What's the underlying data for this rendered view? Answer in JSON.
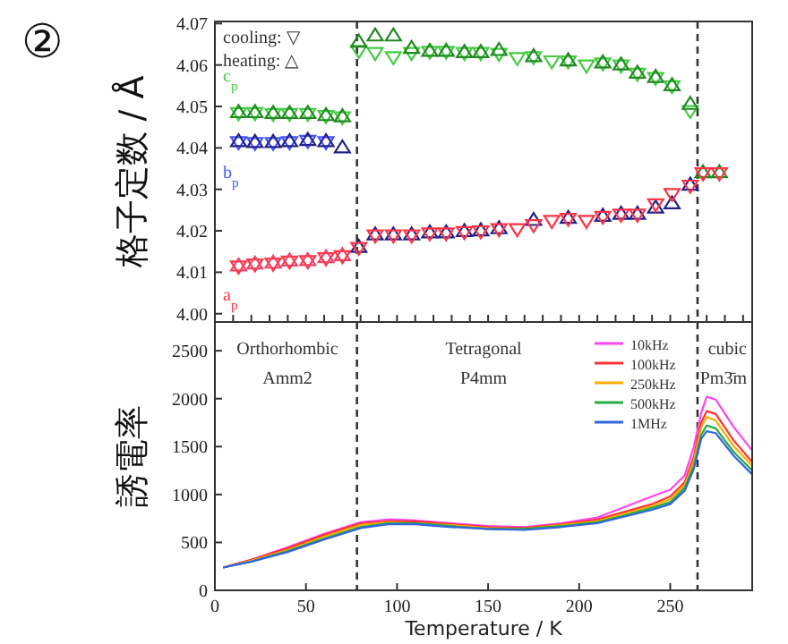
{
  "chart_data": [
    {
      "type": "scatter",
      "title": "②",
      "ylabel": "格子定数 / Å",
      "xlim": [
        0,
        295
      ],
      "ylim": [
        3.998,
        4.0705
      ],
      "xticks": [
        {
          "value": 0,
          "label": null
        },
        {
          "value": 10,
          "label": null
        },
        {
          "value": 20,
          "label": null
        },
        {
          "value": 30,
          "label": null
        },
        {
          "value": 40,
          "label": null
        },
        {
          "value": 50,
          "label": null
        },
        {
          "value": 60,
          "label": null
        },
        {
          "value": 70,
          "label": null
        },
        {
          "value": 80,
          "label": null
        },
        {
          "value": 90,
          "label": null
        },
        {
          "value": 100,
          "label": null
        },
        {
          "value": 110,
          "label": null
        },
        {
          "value": 120,
          "label": null
        },
        {
          "value": 130,
          "label": null
        },
        {
          "value": 140,
          "label": null
        },
        {
          "value": 150,
          "label": null
        },
        {
          "value": 160,
          "label": null
        },
        {
          "value": 170,
          "label": null
        },
        {
          "value": 180,
          "label": null
        },
        {
          "value": 190,
          "label": null
        },
        {
          "value": 200,
          "label": null
        },
        {
          "value": 210,
          "label": null
        },
        {
          "value": 220,
          "label": null
        },
        {
          "value": 230,
          "label": null
        },
        {
          "value": 240,
          "label": null
        },
        {
          "value": 250,
          "label": null
        },
        {
          "value": 260,
          "label": null
        },
        {
          "value": 270,
          "label": null
        },
        {
          "value": 280,
          "label": null
        },
        {
          "value": 290,
          "label": null
        }
      ],
      "yticks": [
        {
          "value": 4.0,
          "label": "4.00"
        },
        {
          "value": 4.01,
          "label": "4.01"
        },
        {
          "value": 4.02,
          "label": "4.02"
        },
        {
          "value": 4.03,
          "label": "4.03"
        },
        {
          "value": 4.04,
          "label": "4.04"
        },
        {
          "value": 4.05,
          "label": "4.05"
        },
        {
          "value": 4.06,
          "label": "4.06"
        },
        {
          "value": 4.07,
          "label": "4.07"
        }
      ],
      "tick_labels": "y",
      "grid": false,
      "ref_lines": [
        {
          "axis": "x",
          "value": 78,
          "label": null,
          "line_style": "dashed",
          "color": "#333333"
        },
        {
          "axis": "x",
          "value": 265,
          "label": null,
          "line_style": "dashed",
          "color": "#333333"
        }
      ],
      "annotations": [
        "cooling: ▽",
        "heating: △",
        "c$_{p}$",
        "b$_{p}$",
        "a$_{p}$"
      ],
      "series": [
        {
          "color": "#44cc44",
          "marker": "triangle-down",
          "x": [
            13,
            22,
            32,
            41,
            51,
            61,
            70,
            79,
            88,
            98,
            108,
            118,
            127,
            137,
            146,
            156,
            166,
            175,
            185,
            194,
            204,
            213,
            223,
            232,
            242,
            251,
            261
          ],
          "values": [
            4.0485,
            4.0485,
            4.0483,
            4.0483,
            4.0483,
            4.0478,
            4.0475,
            4.0635,
            4.063,
            4.062,
            4.063,
            4.0633,
            4.0633,
            4.063,
            4.063,
            4.0628,
            4.0618,
            4.062,
            4.061,
            4.061,
            4.06,
            4.0605,
            4.06,
            4.058,
            4.057,
            4.055,
            4.049
          ]
        },
        {
          "color": "#228822",
          "marker": "triangle",
          "x": [
            13,
            22,
            32,
            41,
            51,
            61,
            70,
            79,
            88,
            98,
            108,
            118,
            127,
            137,
            146,
            156,
            175,
            194,
            213,
            223,
            232,
            242,
            251,
            261,
            268,
            277
          ],
          "values": [
            4.0485,
            4.0485,
            4.0483,
            4.0483,
            4.0483,
            4.0478,
            4.0475,
            4.0655,
            4.067,
            4.067,
            4.064,
            4.0633,
            4.0633,
            4.063,
            4.063,
            4.0635,
            4.062,
            4.061,
            4.0605,
            4.06,
            4.058,
            4.057,
            4.055,
            4.0505,
            4.034,
            4.034
          ]
        },
        {
          "color": "#4455ff",
          "marker": "triangle-down",
          "x": [
            13,
            22,
            32,
            41,
            51,
            61
          ],
          "values": [
            4.0415,
            4.0413,
            4.0413,
            4.0415,
            4.0418,
            4.0415
          ]
        },
        {
          "color": "#222288",
          "marker": "triangle",
          "x": [
            13,
            22,
            32,
            41,
            51,
            61,
            70,
            79,
            88,
            98,
            108,
            118,
            127,
            137,
            146,
            156,
            175,
            194,
            213,
            223,
            232,
            242,
            251,
            261
          ],
          "values": [
            4.0415,
            4.0413,
            4.0413,
            4.0415,
            4.0418,
            4.0415,
            4.04,
            4.016,
            4.019,
            4.019,
            4.019,
            4.0195,
            4.0195,
            4.0198,
            4.02,
            4.0205,
            4.0225,
            4.023,
            4.0235,
            4.024,
            4.024,
            4.0255,
            4.0265,
            4.031
          ]
        },
        {
          "color": "#ff3344",
          "marker": "triangle-down",
          "x": [
            13,
            22,
            32,
            41,
            51,
            61,
            70,
            79,
            88,
            98,
            108,
            118,
            127,
            137,
            146,
            156,
            166,
            175,
            185,
            194,
            204,
            213,
            223,
            232,
            242,
            251,
            261,
            268,
            277
          ],
          "values": [
            4.0115,
            4.012,
            4.0122,
            4.0127,
            4.0128,
            4.0135,
            4.014,
            4.016,
            4.019,
            4.019,
            4.019,
            4.0195,
            4.0195,
            4.0198,
            4.02,
            4.0205,
            4.0205,
            4.0215,
            4.0225,
            4.023,
            4.0225,
            4.0235,
            4.024,
            4.024,
            4.0265,
            4.029,
            4.031,
            4.034,
            4.034
          ]
        },
        {
          "color": "#ee4466",
          "marker": "triangle",
          "x": [
            13,
            22,
            32,
            41,
            51,
            61,
            70
          ],
          "values": [
            4.0115,
            4.012,
            4.0122,
            4.0127,
            4.0128,
            4.0135,
            4.014
          ]
        }
      ]
    },
    {
      "type": "line",
      "ylabel": "誘電率",
      "xlabel": "Temperature / K",
      "xlim": [
        0,
        295
      ],
      "ylim": [
        0,
        2800
      ],
      "xticks": [
        0,
        50,
        100,
        150,
        200,
        250
      ],
      "yticks": [
        0,
        500,
        1000,
        1500,
        2000,
        2500
      ],
      "grid": false,
      "legend": "top right",
      "line_style": "solid",
      "marker": "none",
      "x": [
        5,
        20,
        40,
        60,
        80,
        95,
        110,
        130,
        150,
        170,
        190,
        210,
        225,
        240,
        250,
        258,
        263,
        267,
        270,
        275,
        285,
        295
      ],
      "ref_lines": [
        {
          "axis": "x",
          "value": 78,
          "label": null,
          "line_style": "dashed",
          "color": "#333333"
        },
        {
          "axis": "x",
          "value": 265,
          "label": null,
          "line_style": "dashed",
          "color": "#333333"
        }
      ],
      "annotations": [
        "Orthorhombic",
        "Amm2",
        "Tetragonal",
        "P4mm",
        "cubic",
        "Pm3̄m"
      ],
      "series": [
        {
          "name": "10kHz",
          "color": "#ff44ee",
          "values": [
            240,
            320,
            450,
            590,
            710,
            740,
            730,
            700,
            670,
            660,
            700,
            760,
            870,
            980,
            1050,
            1200,
            1500,
            1850,
            2020,
            1990,
            1700,
            1460
          ]
        },
        {
          "name": "100kHz",
          "color": "#ff3333",
          "values": [
            240,
            320,
            440,
            580,
            700,
            720,
            720,
            690,
            660,
            650,
            690,
            740,
            820,
            900,
            980,
            1130,
            1400,
            1750,
            1870,
            1840,
            1560,
            1340
          ]
        },
        {
          "name": "250kHz",
          "color": "#ffaa00",
          "values": [
            240,
            310,
            420,
            560,
            680,
            710,
            700,
            680,
            650,
            640,
            680,
            720,
            800,
            880,
            950,
            1100,
            1350,
            1700,
            1810,
            1770,
            1500,
            1300
          ]
        },
        {
          "name": "500kHz",
          "color": "#22aa44",
          "values": [
            240,
            300,
            410,
            540,
            660,
            700,
            700,
            670,
            640,
            640,
            670,
            710,
            780,
            860,
            920,
            1070,
            1300,
            1620,
            1720,
            1690,
            1440,
            1250
          ]
        },
        {
          "name": "1MHz",
          "color": "#3366dd",
          "values": [
            240,
            300,
            400,
            530,
            650,
            690,
            690,
            660,
            640,
            630,
            660,
            700,
            770,
            840,
            900,
            1040,
            1270,
            1580,
            1660,
            1640,
            1400,
            1210
          ]
        }
      ]
    }
  ]
}
